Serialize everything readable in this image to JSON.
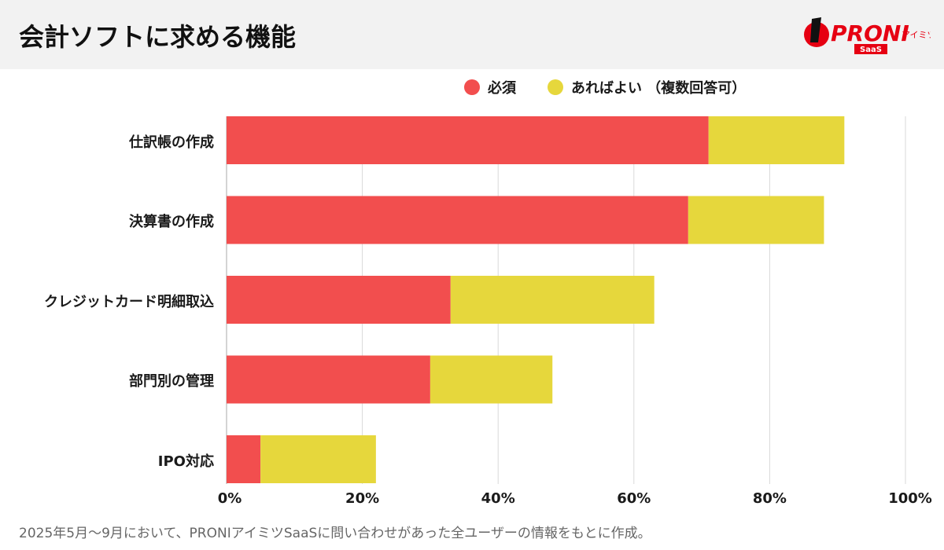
{
  "header": {
    "title": "会計ソフトに求める機能",
    "logo_text": "PRONIアイミツ SaaS"
  },
  "colors": {
    "required": "#f24e4e",
    "nice_to_have": "#e6d73c",
    "grid": "#d9d9d9"
  },
  "chart_data": {
    "type": "bar",
    "orientation": "horizontal",
    "stacked": true,
    "categories": [
      "仕訳帳の作成",
      "決算書の作成",
      "クレジットカード明細取込",
      "部門別の管理",
      "IPO対応"
    ],
    "series": [
      {
        "name": "必須",
        "values": [
          71,
          68,
          33,
          30,
          5
        ]
      },
      {
        "name": "あればよい （複数回答可）",
        "values": [
          20,
          20,
          30,
          18,
          17
        ]
      }
    ],
    "xlim": [
      0,
      100
    ],
    "xticks": [
      "0%",
      "20%",
      "40%",
      "60%",
      "80%",
      "100%"
    ],
    "grid": true,
    "legend": "top-right"
  },
  "footnote": "2025年5月〜9月において、PRONIアイミツSaaSに問い合わせがあった全ユーザーの情報をもとに作成。"
}
